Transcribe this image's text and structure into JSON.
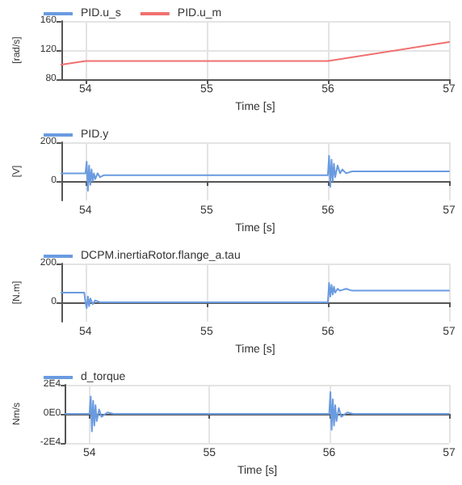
{
  "chart_data": [
    {
      "type": "line",
      "xlabel": "Time [s]",
      "ylabel": "[rad/s]",
      "xlim": [
        53.8,
        57
      ],
      "xticks": [
        54,
        55,
        56,
        57
      ],
      "ylim": [
        80,
        160
      ],
      "yticks": [
        80,
        120,
        160
      ],
      "grid": true,
      "legend": "top left",
      "line_style": "solid",
      "marker": "none",
      "series": [
        {
          "name": "PID.u_s",
          "color": "#6a9be0"
        },
        {
          "name": "PID.u_m",
          "color": "#f07070",
          "x": [
            53.8,
            54,
            56,
            57
          ],
          "values": [
            100,
            105,
            105,
            131
          ]
        }
      ]
    },
    {
      "type": "line",
      "xlabel": "Time [s]",
      "ylabel": "[V]",
      "xlim": [
        53.8,
        57
      ],
      "xticks": [
        54,
        55,
        56,
        57
      ],
      "ylim": [
        -100,
        200
      ],
      "yticks": [
        0,
        200
      ],
      "grid": true,
      "legend": "top left",
      "line_style": "solid",
      "marker": "none",
      "series": [
        {
          "name": "PID.y",
          "color": "#6a9be0",
          "x": [
            53.8,
            54,
            54.01,
            54.02,
            54.03,
            54.04,
            54.05,
            54.06,
            54.07,
            54.08,
            54.1,
            54.12,
            54.15,
            54.2,
            56,
            56.01,
            56.02,
            56.03,
            56.04,
            56.05,
            56.06,
            56.08,
            56.1,
            56.12,
            56.15,
            56.2,
            56.3,
            57
          ],
          "values": [
            40,
            40,
            100,
            -50,
            80,
            -20,
            60,
            0,
            40,
            10,
            40,
            20,
            30,
            30,
            30,
            130,
            -30,
            110,
            0,
            90,
            20,
            80,
            40,
            60,
            40,
            50,
            50,
            50
          ]
        }
      ]
    },
    {
      "type": "line",
      "xlabel": "Time [s]",
      "ylabel": "[N.m]",
      "xlim": [
        53.8,
        57
      ],
      "xticks": [
        54,
        55,
        56,
        57
      ],
      "ylim": [
        -100,
        200
      ],
      "yticks": [
        0,
        200
      ],
      "grid": true,
      "legend": "top left",
      "line_style": "solid",
      "marker": "none",
      "series": [
        {
          "name": "DCPM.inertiaRotor.flange_a.tau",
          "color": "#6a9be0",
          "x": [
            53.8,
            53.99,
            54,
            54.01,
            54.02,
            54.03,
            54.04,
            54.06,
            54.08,
            54.12,
            54.2,
            56,
            56.01,
            56.02,
            56.03,
            56.04,
            56.05,
            56.06,
            56.08,
            56.1,
            56.15,
            56.2,
            57
          ],
          "values": [
            50,
            50,
            0,
            -30,
            30,
            -20,
            20,
            -10,
            10,
            0,
            0,
            0,
            100,
            30,
            90,
            40,
            80,
            50,
            70,
            60,
            70,
            60,
            60
          ]
        }
      ]
    },
    {
      "type": "line",
      "xlabel": "Time [s]",
      "ylabel": "Nm/s",
      "xlim": [
        53.8,
        57
      ],
      "xticks": [
        54,
        55,
        56,
        57
      ],
      "ylim": [
        -20000,
        20000
      ],
      "yticks": [
        {
          "value": -20000,
          "label": "-2E4"
        },
        {
          "value": 0,
          "label": "0E0"
        },
        {
          "value": 20000,
          "label": "2E4"
        }
      ],
      "grid": true,
      "legend": "top left",
      "line_style": "solid",
      "marker": "none",
      "series": [
        {
          "name": "d_torque",
          "color": "#6a9be0",
          "x": [
            53.8,
            54,
            54.01,
            54.02,
            54.03,
            54.04,
            54.05,
            54.06,
            54.08,
            54.1,
            54.15,
            54.2,
            56,
            56.01,
            56.02,
            56.03,
            56.04,
            56.05,
            56.06,
            56.08,
            56.1,
            56.15,
            56.2,
            57
          ],
          "values": [
            0,
            0,
            12000,
            -12000,
            9000,
            -8000,
            6000,
            -5000,
            3000,
            -2000,
            1000,
            0,
            0,
            15000,
            -11000,
            10000,
            -8000,
            6000,
            -5000,
            4000,
            -2000,
            1000,
            0,
            0
          ]
        }
      ]
    }
  ]
}
